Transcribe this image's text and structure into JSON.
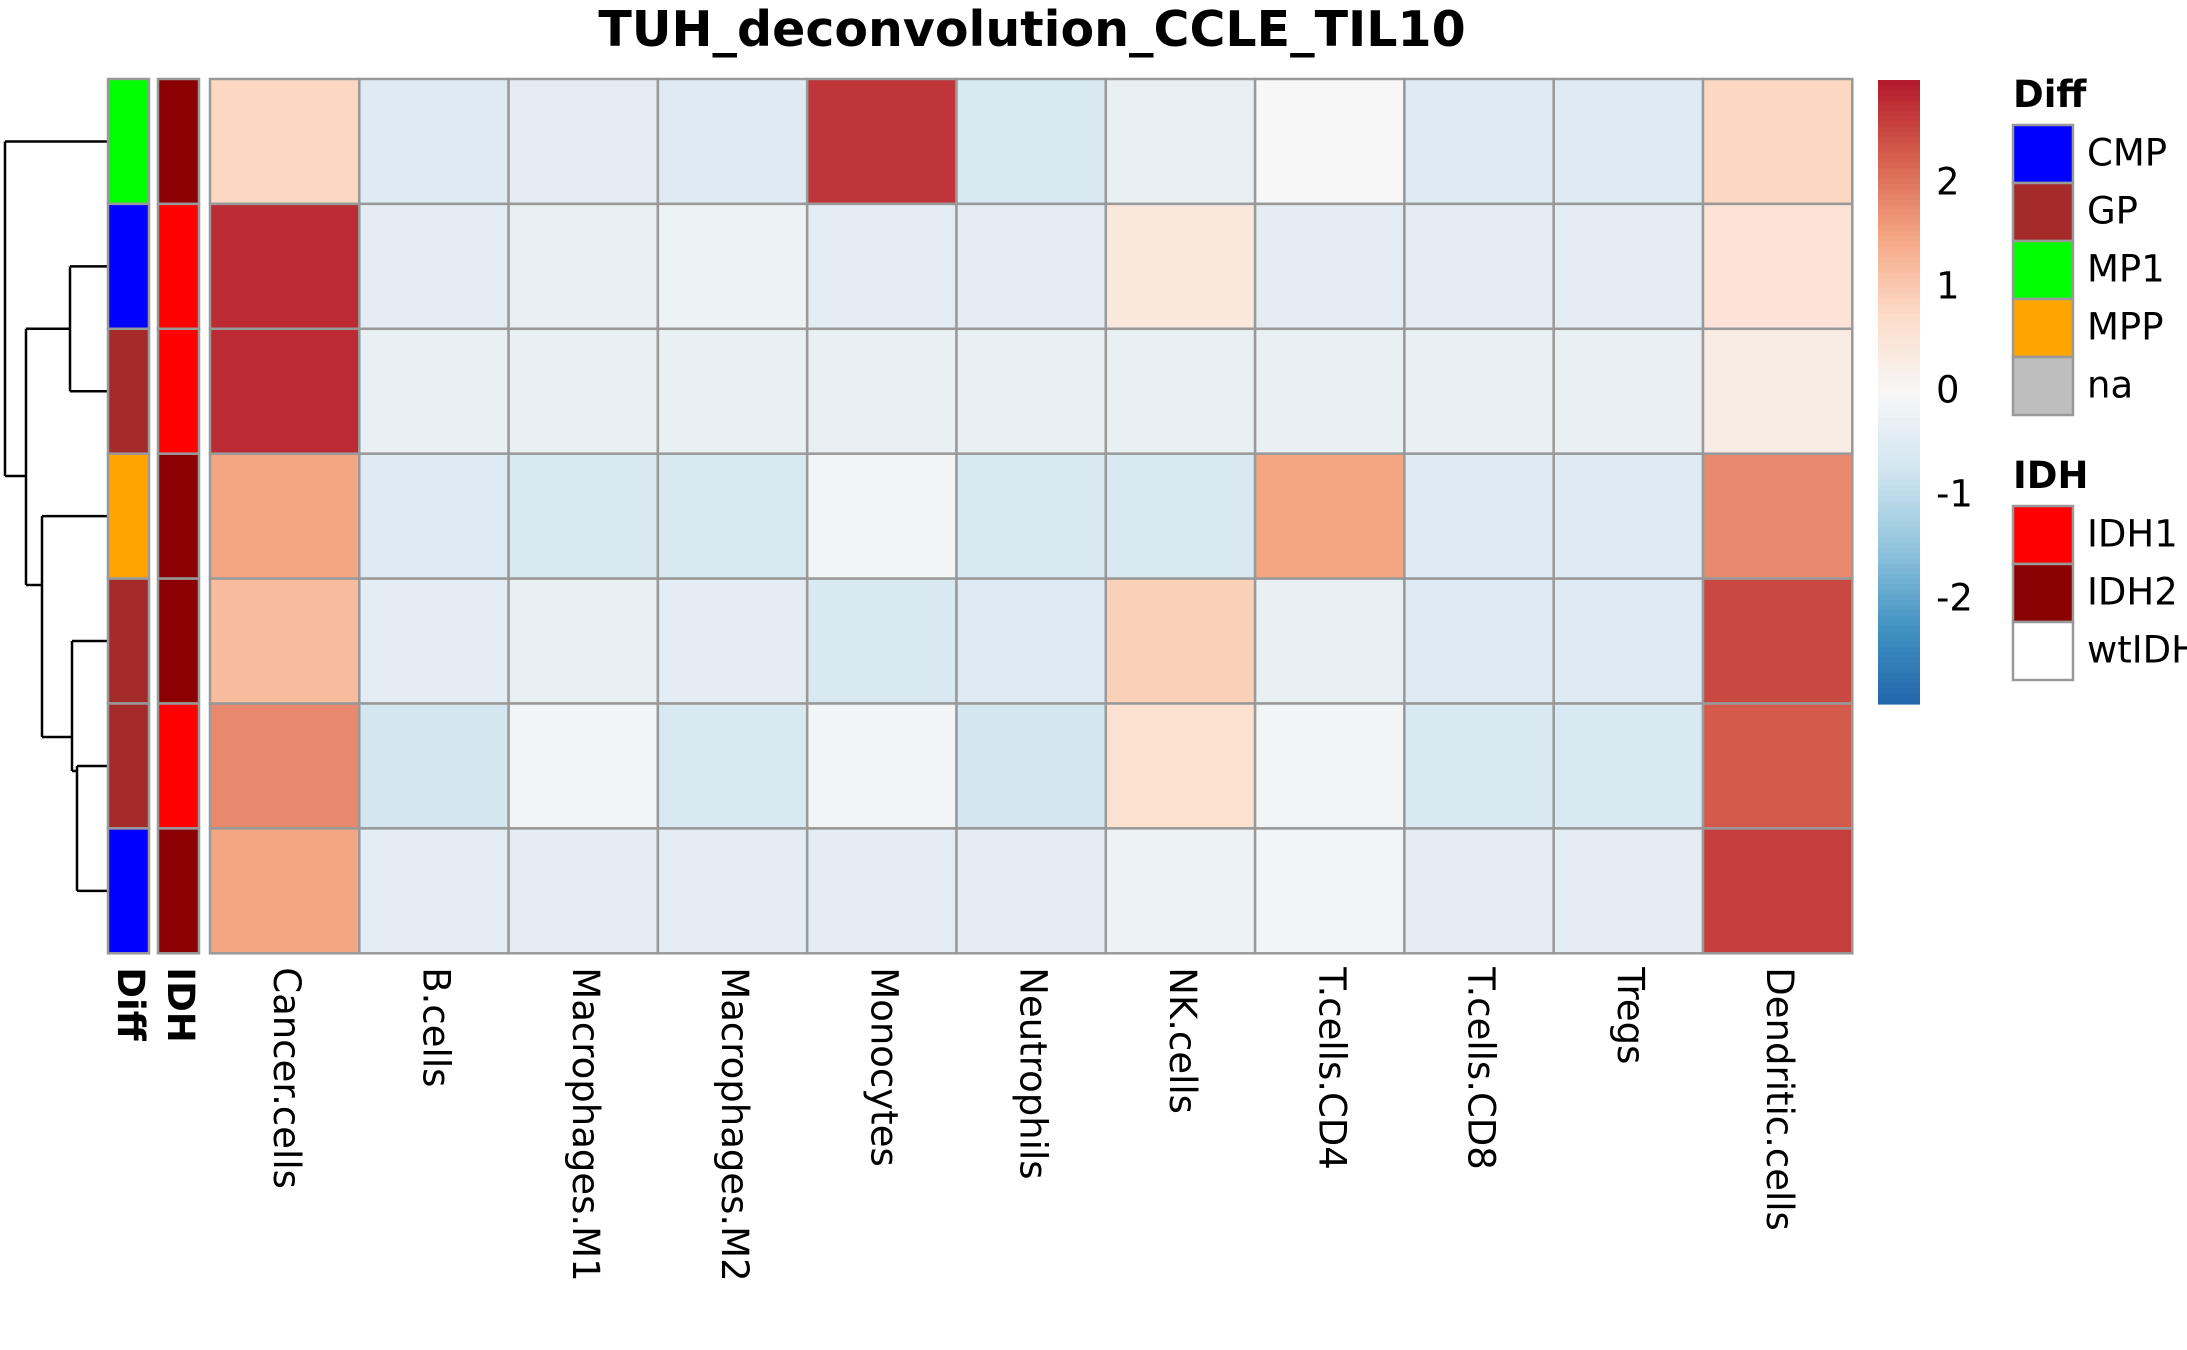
{
  "chart_data": {
    "type": "heatmap",
    "title": "TUH_deconvolution_CCLE_TIL10",
    "columns": [
      "Cancer.cells",
      "B.cells",
      "Macrophages.M1",
      "Macrophages.M2",
      "Monocytes",
      "Neutrophils",
      "NK.cells",
      "T.cells.CD4",
      "T.cells.CD8",
      "Tregs",
      "Dendritic.cells"
    ],
    "values": [
      [
        0.8,
        -0.5,
        -0.4,
        -0.5,
        2.7,
        -0.6,
        -0.3,
        0.0,
        -0.5,
        -0.5,
        0.8
      ],
      [
        2.8,
        -0.4,
        -0.3,
        -0.2,
        -0.4,
        -0.4,
        0.4,
        -0.4,
        -0.4,
        -0.4,
        0.5
      ],
      [
        2.8,
        -0.3,
        -0.3,
        -0.3,
        -0.3,
        -0.3,
        -0.3,
        -0.3,
        -0.3,
        -0.3,
        0.3
      ],
      [
        1.5,
        -0.5,
        -0.6,
        -0.6,
        -0.1,
        -0.6,
        -0.6,
        1.5,
        -0.5,
        -0.5,
        1.8
      ],
      [
        1.2,
        -0.4,
        -0.3,
        -0.4,
        -0.6,
        -0.5,
        0.9,
        -0.3,
        -0.5,
        -0.5,
        2.5
      ],
      [
        1.8,
        -0.7,
        -0.1,
        -0.6,
        -0.1,
        -0.7,
        0.6,
        -0.1,
        -0.6,
        -0.6,
        2.3
      ],
      [
        1.5,
        -0.4,
        -0.4,
        -0.4,
        -0.4,
        -0.4,
        -0.2,
        -0.1,
        -0.4,
        -0.4,
        2.6
      ]
    ],
    "row_annotations": {
      "Diff": [
        "MP1",
        "CMP",
        "GP",
        "MPP",
        "GP",
        "GP",
        "CMP"
      ],
      "IDH": [
        "IDH2",
        "IDH1",
        "IDH1",
        "IDH2",
        "IDH2",
        "IDH1",
        "IDH2"
      ]
    },
    "annotation_labels": [
      "Diff",
      "IDH"
    ],
    "color_scale": {
      "min": -3,
      "max": 3,
      "ticks": [
        2,
        1,
        0,
        -1,
        -2
      ],
      "colors": [
        "#2166AC",
        "#4393C3",
        "#92C5DE",
        "#D1E5F0",
        "#F7F7F7",
        "#FDDBC7",
        "#F4A582",
        "#D6604D",
        "#B2182B"
      ]
    },
    "legends": [
      {
        "title": "Diff",
        "items": [
          {
            "label": "CMP",
            "color": "#0000FF"
          },
          {
            "label": "GP",
            "color": "#A52A2A"
          },
          {
            "label": "MP1",
            "color": "#00FF00"
          },
          {
            "label": "MPP",
            "color": "#FFA500"
          },
          {
            "label": "na",
            "color": "#BEBEBE"
          }
        ]
      },
      {
        "title": "IDH",
        "items": [
          {
            "label": "IDH1",
            "color": "#FF0000"
          },
          {
            "label": "IDH2",
            "color": "#8B0000"
          },
          {
            "label": "wtIDH",
            "color": "#FFFFFF"
          }
        ]
      }
    ],
    "grid": true,
    "dendrogram": "rows"
  }
}
